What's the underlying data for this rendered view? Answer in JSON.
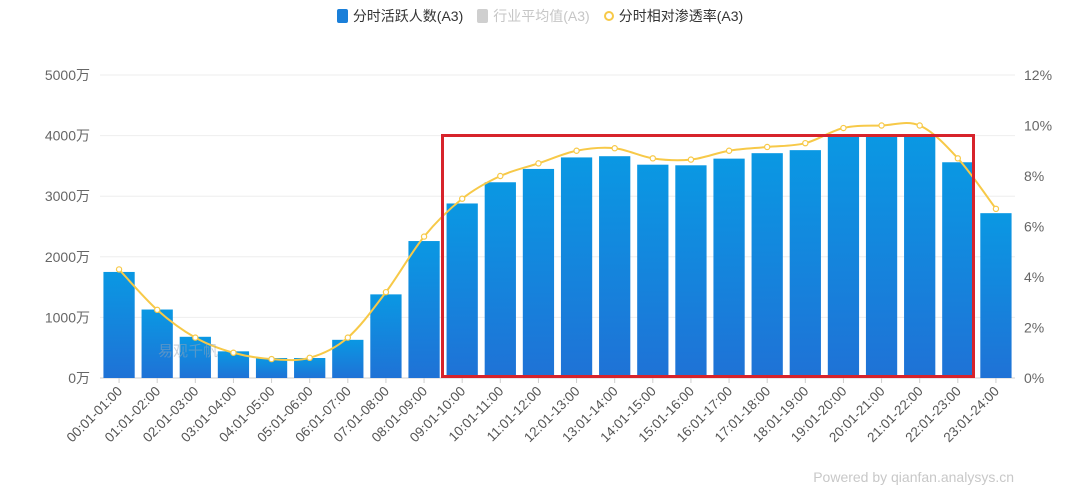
{
  "legend": [
    {
      "label": "分时活跃人数(A3)",
      "color": "#1a7fd9",
      "kind": "bar",
      "active": true
    },
    {
      "label": "行业平均值(A3)",
      "color": "#cfcfcf",
      "kind": "bar",
      "active": false
    },
    {
      "label": "分时相对渗透率(A3)",
      "color": "#f7c948",
      "kind": "line",
      "active": true
    }
  ],
  "watermark": "易观千帆",
  "footer": "Powered by qianfan.analysys.cn",
  "colors": {
    "bar_top": "#0a98e3",
    "bar_bottom": "#1f72d6",
    "line": "#f7c948",
    "highlight": "#d7232b"
  },
  "chart_data": {
    "type": "bar",
    "categories": [
      "00:01-01:00",
      "01:01-02:00",
      "02:01-03:00",
      "03:01-04:00",
      "04:01-05:00",
      "05:01-06:00",
      "06:01-07:00",
      "07:01-08:00",
      "08:01-09:00",
      "09:01-10:00",
      "10:01-11:00",
      "11:01-12:00",
      "12:01-13:00",
      "13:01-14:00",
      "14:01-15:00",
      "15:01-16:00",
      "16:01-17:00",
      "17:01-18:00",
      "18:01-19:00",
      "19:01-20:00",
      "20:01-21:00",
      "21:01-22:00",
      "22:01-23:00",
      "23:01-24:00"
    ],
    "series": [
      {
        "name": "分时活跃人数(A3)",
        "type": "bar",
        "axis": "left",
        "values": [
          1750,
          1130,
          680,
          440,
          330,
          330,
          630,
          1380,
          2260,
          2880,
          3230,
          3450,
          3640,
          3660,
          3520,
          3510,
          3620,
          3710,
          3760,
          4010,
          4010,
          4010,
          3560,
          2720
        ]
      },
      {
        "name": "分时相对渗透率(A3)",
        "type": "line",
        "axis": "right",
        "values": [
          4.3,
          2.7,
          1.6,
          1.0,
          0.75,
          0.8,
          1.6,
          3.4,
          5.6,
          7.1,
          8.0,
          8.5,
          9.0,
          9.1,
          8.7,
          8.65,
          9.0,
          9.15,
          9.3,
          9.9,
          10.0,
          10.0,
          8.7,
          6.7
        ]
      }
    ],
    "y_left": {
      "ticks": [
        "0万",
        "1000万",
        "2000万",
        "3000万",
        "4000万",
        "5000万"
      ],
      "range": [
        0,
        5000
      ]
    },
    "y_right": {
      "ticks": [
        "0%",
        "2%",
        "4%",
        "6%",
        "8%",
        "10%",
        "12%"
      ],
      "range": [
        0,
        12
      ]
    },
    "grid": true,
    "legend_position": "top-center"
  }
}
